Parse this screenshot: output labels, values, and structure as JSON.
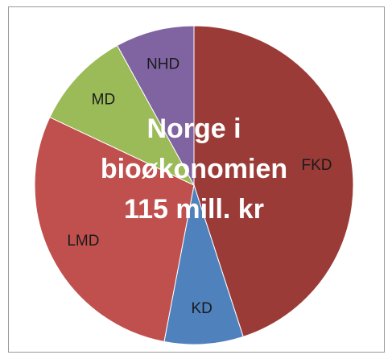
{
  "chart_data": {
    "type": "pie",
    "title": [
      "Norge i",
      "bioøkonomien",
      "115 mill. kr"
    ],
    "categories": [
      "FKD",
      "KD",
      "LMD",
      "MD",
      "NHD"
    ],
    "values": [
      45,
      8,
      29,
      10,
      8
    ],
    "colors": [
      "#9b3b38",
      "#4f81bd",
      "#c0504d",
      "#9bbb59",
      "#8064a2"
    ]
  }
}
